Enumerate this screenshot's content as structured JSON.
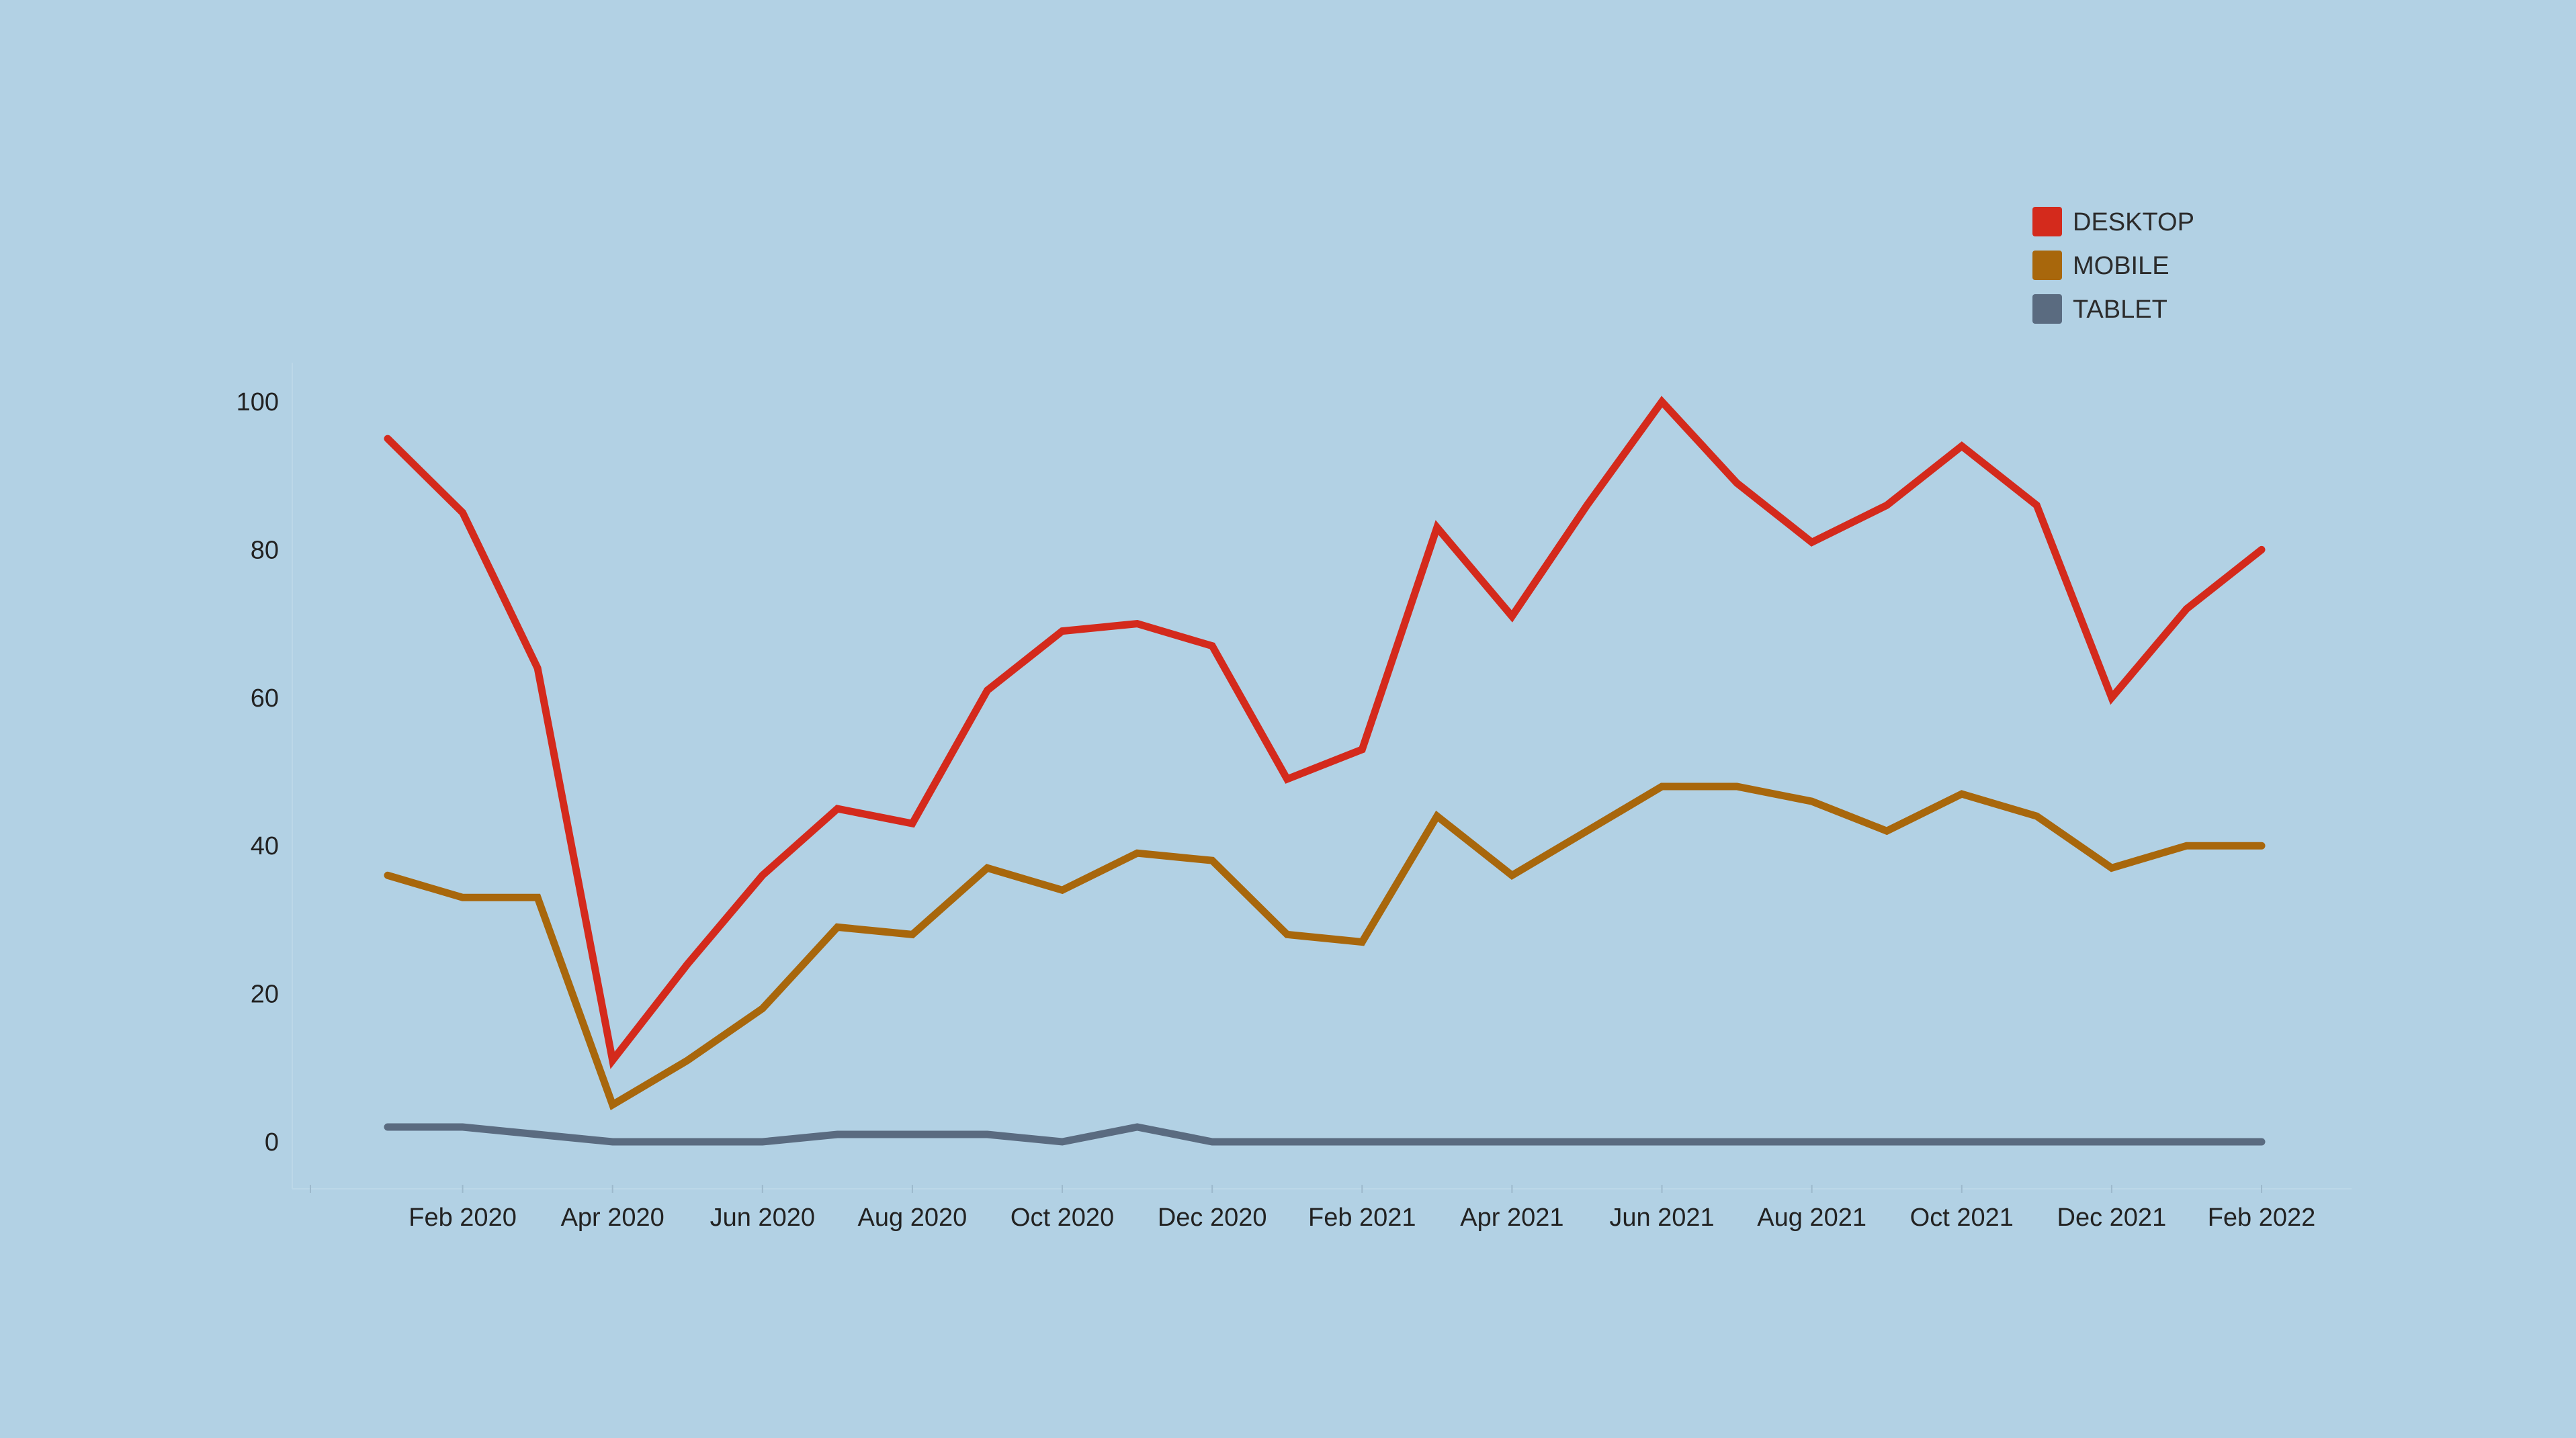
{
  "chart_data": {
    "type": "line",
    "title": "",
    "xlabel": "",
    "ylabel": "",
    "x": [
      "2020-01",
      "2020-02",
      "2020-03",
      "2020-04",
      "2020-05",
      "2020-06",
      "2020-07",
      "2020-08",
      "2020-09",
      "2020-10",
      "2020-11",
      "2020-12",
      "2021-01",
      "2021-02",
      "2021-03",
      "2021-04",
      "2021-05",
      "2021-06",
      "2021-07",
      "2021-08",
      "2021-09",
      "2021-10",
      "2021-11",
      "2021-12",
      "2022-01",
      "2022-02"
    ],
    "x_ticks": [
      {
        "x": "2020-02",
        "label": "Feb 2020"
      },
      {
        "x": "2020-04",
        "label": "Apr 2020"
      },
      {
        "x": "2020-06",
        "label": "Jun 2020"
      },
      {
        "x": "2020-08",
        "label": "Aug 2020"
      },
      {
        "x": "2020-10",
        "label": "Oct 2020"
      },
      {
        "x": "2020-12",
        "label": "Dec 2020"
      },
      {
        "x": "2021-02",
        "label": "Feb 2021"
      },
      {
        "x": "2021-04",
        "label": "Apr 2021"
      },
      {
        "x": "2021-06",
        "label": "Jun 2021"
      },
      {
        "x": "2021-08",
        "label": "Aug 2021"
      },
      {
        "x": "2021-10",
        "label": "Oct 2021"
      },
      {
        "x": "2021-12",
        "label": "Dec 2021"
      },
      {
        "x": "2022-02",
        "label": "Feb 2022"
      }
    ],
    "y_ticks": [
      0,
      20,
      40,
      60,
      80,
      100
    ],
    "ylim": [
      -6,
      105
    ],
    "grid": true,
    "legend_position": "top-right",
    "series": [
      {
        "name": "DESKTOP",
        "color": "#d42a1c",
        "values": [
          95,
          85,
          64,
          11,
          24,
          36,
          45,
          43,
          61,
          69,
          70,
          67,
          49,
          53,
          83,
          71,
          86,
          100,
          89,
          81,
          86,
          94,
          86,
          60,
          72,
          80
        ]
      },
      {
        "name": "MOBILE",
        "color": "#a8670c",
        "values": [
          36,
          33,
          33,
          5,
          11,
          18,
          29,
          28,
          37,
          34,
          39,
          38,
          28,
          27,
          44,
          36,
          42,
          48,
          48,
          46,
          42,
          47,
          44,
          37,
          40,
          40
        ]
      },
      {
        "name": "TABLET",
        "color": "#5a6b80",
        "values": [
          2,
          2,
          1,
          0,
          0,
          0,
          1,
          1,
          1,
          0,
          2,
          0,
          0,
          0,
          0,
          0,
          0,
          0,
          0,
          0,
          0,
          0,
          0,
          0,
          0,
          0
        ]
      }
    ]
  }
}
